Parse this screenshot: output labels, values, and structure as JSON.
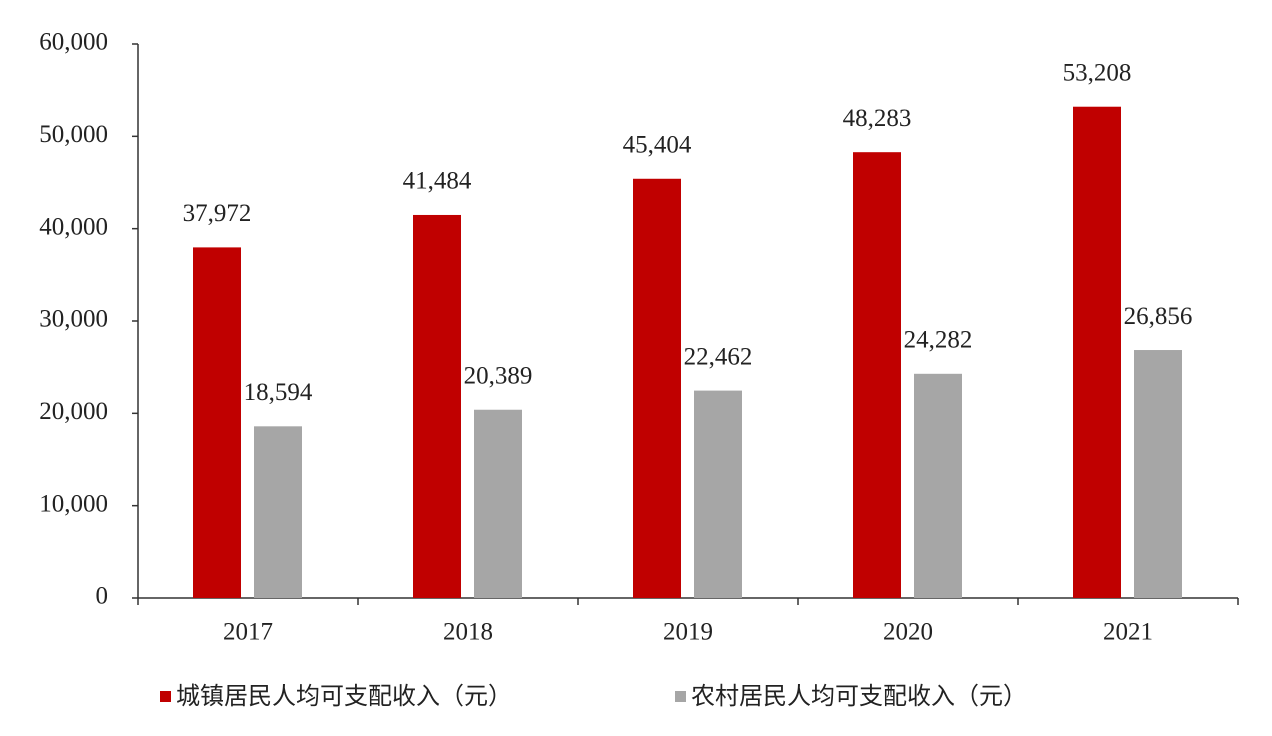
{
  "chart_data": {
    "type": "bar",
    "categories": [
      "2017",
      "2018",
      "2019",
      "2020",
      "2021"
    ],
    "series": [
      {
        "name": "城镇居民人均可支配收入（元）",
        "color": "#c00000",
        "values": [
          37972,
          41484,
          45404,
          48283,
          53208
        ],
        "value_labels": [
          "37,972",
          "41,484",
          "45,404",
          "48,283",
          "53,208"
        ]
      },
      {
        "name": "农村居民人均可支配收入（元）",
        "color": "#a6a6a6",
        "values": [
          18594,
          20389,
          22462,
          24282,
          26856
        ],
        "value_labels": [
          "18,594",
          "20,389",
          "22,462",
          "24,282",
          "26,856"
        ]
      }
    ],
    "ylim": [
      0,
      60000
    ],
    "yticks": [
      0,
      {
        "value": 10000,
        "label": "10,000"
      },
      {
        "value": 20000,
        "label": "20,000"
      },
      {
        "value": 30000,
        "label": "30,000"
      },
      {
        "value": 40000,
        "label": "40,000"
      },
      {
        "value": 50000,
        "label": "50,000"
      },
      {
        "value": 60000,
        "label": "60,000"
      }
    ],
    "legend": "bottom"
  }
}
